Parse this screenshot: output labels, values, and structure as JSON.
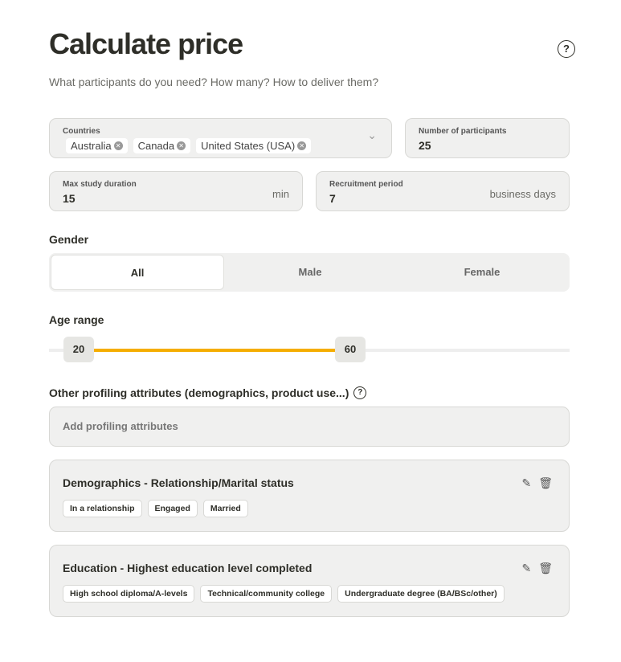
{
  "header": {
    "title": "Calculate price",
    "subtitle": "What participants do you need? How many? How to deliver them?",
    "help": "?"
  },
  "countries": {
    "label": "Countries",
    "selected": [
      "Australia",
      "Canada",
      "United States (USA)"
    ],
    "chevron": "⌄"
  },
  "participants": {
    "label": "Number of participants",
    "value": "25"
  },
  "duration": {
    "label": "Max study duration",
    "value": "15",
    "unit": "min"
  },
  "recruitment": {
    "label": "Recruitment period",
    "value": "7",
    "unit": "business days"
  },
  "gender": {
    "label": "Gender",
    "options": [
      "All",
      "Male",
      "Female"
    ],
    "selected": "All"
  },
  "age": {
    "label": "Age range",
    "min": "20",
    "max": "60",
    "accent": "#f5ad00"
  },
  "profiling": {
    "label": "Other profiling attributes (demographics, product use...)",
    "help": "?",
    "add_label": "Add profiling attributes"
  },
  "cards": [
    {
      "title": "Demographics - Relationship/Marital status",
      "tags": [
        "In a relationship",
        "Engaged",
        "Married"
      ]
    },
    {
      "title": "Education - Highest education level completed",
      "tags": [
        "High school diploma/A-levels",
        "Technical/community college",
        "Undergraduate degree (BA/BSc/other)"
      ]
    }
  ]
}
